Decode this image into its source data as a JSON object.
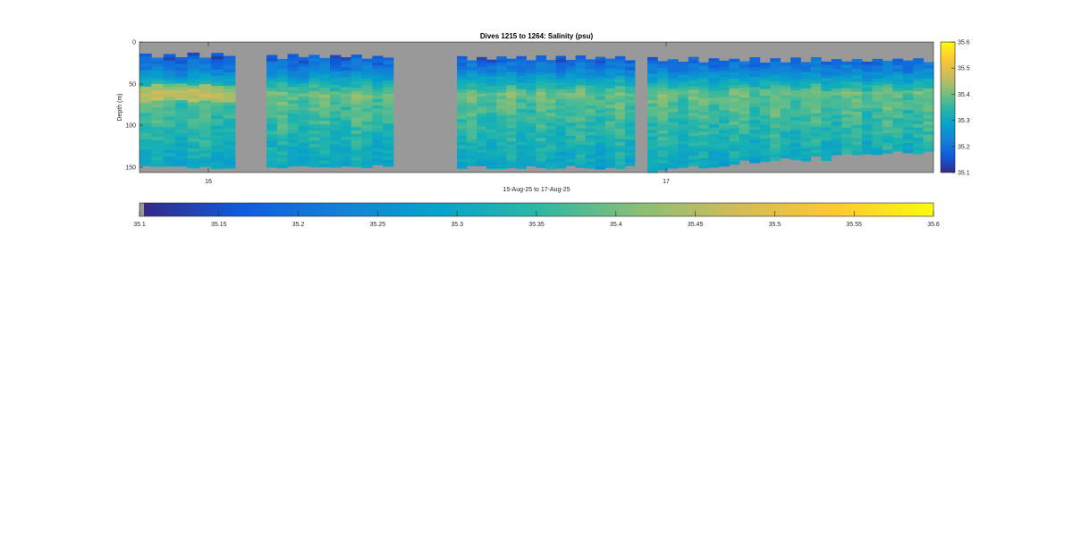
{
  "chart_data": {
    "type": "heatmap",
    "title": "Dives 1215 to 1264: Salinity (psu)",
    "xlabel": "15-Aug-25 to 17-Aug-25",
    "ylabel": "Depth (m)",
    "x_ticks": [
      "16",
      "17"
    ],
    "y_ticks": [
      "0",
      "50",
      "100",
      "150"
    ],
    "ylim": [
      0,
      158
    ],
    "y_reversed": true,
    "colormap": "parula",
    "clim": [
      35.1,
      35.6
    ],
    "colorbar_right_ticks": [
      "35.1",
      "35.2",
      "35.3",
      "35.4",
      "35.5",
      "35.6"
    ],
    "colorbar_bottom_ticks": [
      "35.1",
      "35.15",
      "35.2",
      "35.25",
      "35.3",
      "35.35",
      "35.4",
      "35.45",
      "35.5",
      "35.55",
      "35.6"
    ],
    "colors": {
      "no_data": "#999999",
      "cmap_low": "#352a87",
      "cmap_high": "#f9fb0e"
    },
    "dive_groups": [
      {
        "profiles": 8,
        "top_depth": 12,
        "bottom_depth": 148
      },
      {
        "profiles": 12,
        "top_depth": 14,
        "bottom_depth": 148
      },
      {
        "profiles": 18,
        "top_depth": 16,
        "bottom_depth": 149
      },
      {
        "profiles": 28,
        "top_depth": 18,
        "bottom_depth": 140
      }
    ]
  }
}
